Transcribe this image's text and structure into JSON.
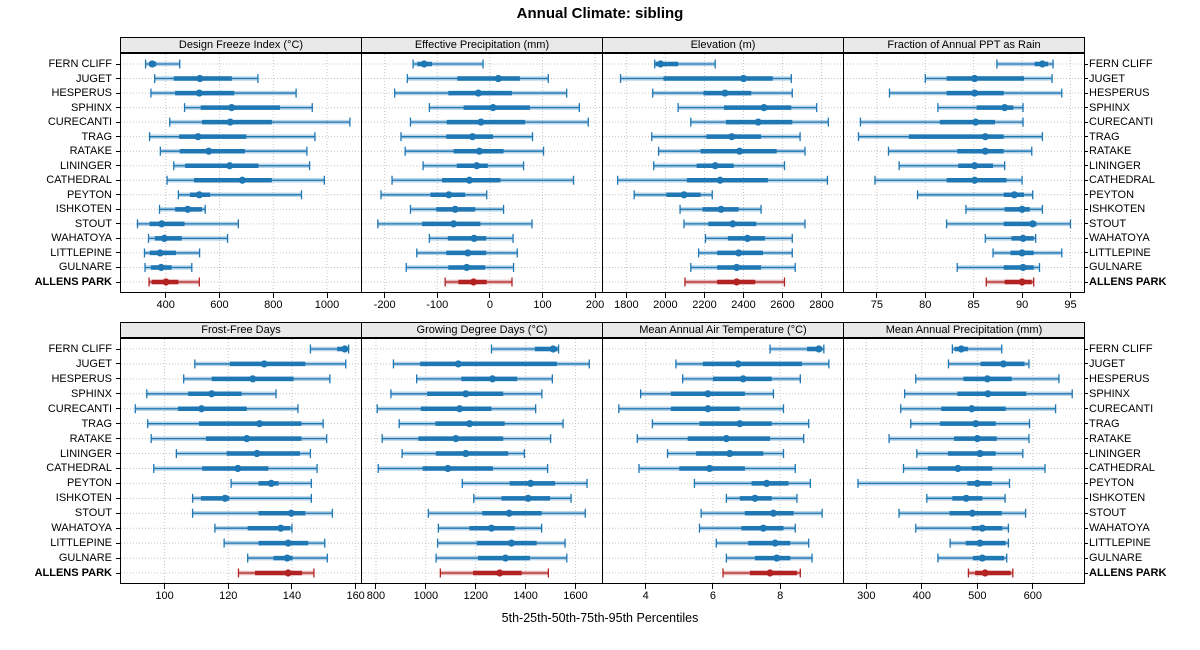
{
  "title": "Annual Climate: sibling",
  "caption": "5th-25th-50th-75th-95th Percentiles",
  "chart_data": {
    "type": "dotplot-percentile-trellis",
    "percentile_labels": [
      "5th",
      "25th",
      "50th",
      "75th",
      "95th"
    ],
    "stations": [
      "FERN CLIFF",
      "JUGET",
      "HESPERUS",
      "SPHINX",
      "CURECANTI",
      "TRAG",
      "RATAKE",
      "LININGER",
      "CATHEDRAL",
      "PEYTON",
      "ISHKOTEN",
      "STOUT",
      "WAHATOYA",
      "LITTLEPINE",
      "GULNARE",
      "ALLENS PARK"
    ],
    "highlight_station": "ALLENS PARK",
    "colors": {
      "series": "#1f77b4",
      "highlight": "#b22222",
      "grid": "#c4c4c4",
      "strip_bg": "#e9e9e9",
      "border": "#000000"
    },
    "layout": {
      "rows": 2,
      "cols": 4,
      "grid": "dotted",
      "labels_both_sides": true
    },
    "panels": [
      {
        "title": "Design Freeze Index (°C)",
        "ticks": [
          400,
          600,
          800,
          1000
        ],
        "xlim": [
          230,
          1130
        ],
        "values": [
          [
            325,
            338,
            350,
            365,
            452
          ],
          [
            359,
            430,
            527,
            646,
            743
          ],
          [
            345,
            435,
            525,
            655,
            885
          ],
          [
            470,
            530,
            645,
            825,
            945
          ],
          [
            415,
            535,
            640,
            795,
            1085
          ],
          [
            340,
            450,
            520,
            700,
            955
          ],
          [
            380,
            452,
            560,
            695,
            925
          ],
          [
            430,
            472,
            638,
            745,
            935
          ],
          [
            405,
            505,
            685,
            795,
            990
          ],
          [
            447,
            490,
            525,
            565,
            905
          ],
          [
            377,
            435,
            482,
            535,
            547
          ],
          [
            295,
            340,
            385,
            470,
            670
          ],
          [
            336,
            360,
            395,
            460,
            630
          ],
          [
            321,
            341,
            379,
            438,
            526
          ],
          [
            323,
            345,
            383,
            422,
            497
          ],
          [
            338,
            348,
            401,
            447,
            525
          ]
        ]
      },
      {
        "title": "Effective Precipitation (mm)",
        "ticks": [
          -200,
          -100,
          0,
          100,
          200
        ],
        "xlim": [
          -245,
          215
        ],
        "values": [
          [
            -146,
            -138,
            -125,
            -110,
            -13
          ],
          [
            -157,
            -62,
            16,
            57,
            111
          ],
          [
            -181,
            -79,
            -22,
            42,
            146
          ],
          [
            -115,
            -50,
            6,
            76,
            170
          ],
          [
            -151,
            -82,
            -17,
            67,
            187
          ],
          [
            -169,
            -83,
            -33,
            6,
            81
          ],
          [
            -161,
            -69,
            -20,
            26,
            102
          ],
          [
            -127,
            -63,
            -25,
            -4,
            64
          ],
          [
            -186,
            -91,
            -39,
            20,
            159
          ],
          [
            -207,
            -113,
            -78,
            -47,
            -6
          ],
          [
            -151,
            -102,
            -66,
            -28,
            26
          ],
          [
            -213,
            -129,
            -69,
            -18,
            80
          ],
          [
            -115,
            -80,
            -30,
            -7,
            44
          ],
          [
            -139,
            -83,
            -42,
            -7,
            52
          ],
          [
            -159,
            -79,
            -44,
            -9,
            45
          ],
          [
            -85,
            -60,
            -31,
            -6,
            42
          ]
        ]
      },
      {
        "title": "Elevation (m)",
        "ticks": [
          1800,
          2000,
          2200,
          2400,
          2600,
          2800
        ],
        "xlim": [
          1675,
          2915
        ],
        "values": [
          [
            1945,
            1950,
            1975,
            2065,
            2255
          ],
          [
            1770,
            1990,
            2400,
            2550,
            2645
          ],
          [
            1935,
            2195,
            2305,
            2440,
            2650
          ],
          [
            2065,
            2300,
            2505,
            2645,
            2775
          ],
          [
            2130,
            2310,
            2475,
            2650,
            2835
          ],
          [
            1930,
            2210,
            2340,
            2490,
            2690
          ],
          [
            1965,
            2180,
            2380,
            2570,
            2715
          ],
          [
            1940,
            2160,
            2255,
            2350,
            2610
          ],
          [
            1755,
            2110,
            2280,
            2525,
            2830
          ],
          [
            1840,
            2005,
            2095,
            2180,
            2240
          ],
          [
            2075,
            2190,
            2285,
            2375,
            2490
          ],
          [
            2095,
            2220,
            2345,
            2465,
            2715
          ],
          [
            2205,
            2320,
            2420,
            2510,
            2650
          ],
          [
            2170,
            2265,
            2375,
            2500,
            2650
          ],
          [
            2130,
            2265,
            2365,
            2490,
            2665
          ],
          [
            2100,
            2265,
            2365,
            2460,
            2610
          ]
        ]
      },
      {
        "title": "Fraction of Annual PPT as Rain",
        "ticks": [
          75,
          80,
          85,
          90,
          95
        ],
        "xlim": [
          71.5,
          96.5
        ],
        "values": [
          [
            87.4,
            91.3,
            92.1,
            92.7,
            93.2
          ],
          [
            80,
            82.2,
            85.1,
            90.2,
            93.1
          ],
          [
            76.3,
            82.2,
            85.1,
            88.1,
            94.1
          ],
          [
            81.3,
            85.3,
            88.2,
            89.1,
            90.1
          ],
          [
            73.3,
            81.5,
            85.2,
            87.2,
            90.1
          ],
          [
            73.1,
            78.3,
            86.2,
            88.1,
            92.1
          ],
          [
            76.2,
            83.3,
            86.2,
            88.1,
            91
          ],
          [
            77.3,
            83.4,
            85.1,
            87,
            88.2
          ],
          [
            74.8,
            82.2,
            85.1,
            88.4,
            90
          ],
          [
            79.2,
            88.1,
            89.2,
            90.2,
            91.1
          ],
          [
            84.2,
            88.2,
            90,
            90.8,
            92.1
          ],
          [
            82.2,
            88.1,
            91.1,
            91.5,
            95
          ],
          [
            86.2,
            88.9,
            90.1,
            91.2,
            91.4
          ],
          [
            87,
            88.8,
            90,
            91.2,
            94.1
          ],
          [
            83.3,
            88.1,
            90.1,
            91.2,
            91.8
          ],
          [
            86.3,
            88.2,
            90,
            91,
            91.2
          ]
        ]
      },
      {
        "title": "Frost-Free Days",
        "ticks": [
          100,
          120,
          140,
          160
        ],
        "xlim": [
          86,
          162
        ],
        "values": [
          [
            145.8,
            154.2,
            156.6,
            157.4,
            157.8
          ],
          [
            109.5,
            120.5,
            131.3,
            144.2,
            156.9
          ],
          [
            106,
            114.8,
            127.7,
            140.5,
            151.9
          ],
          [
            94.4,
            107.4,
            114.8,
            124.2,
            135
          ],
          [
            90.8,
            104.2,
            111.6,
            125.8,
            141.9
          ],
          [
            94.7,
            110.8,
            129.8,
            143,
            149.8
          ],
          [
            95.8,
            113,
            125.8,
            143,
            150.9
          ],
          [
            103.7,
            119.5,
            129,
            142.5,
            145.8
          ],
          [
            96.6,
            111.8,
            123,
            132.6,
            147.9
          ],
          [
            120.9,
            129.5,
            133.5,
            135.8,
            146.1
          ],
          [
            108.8,
            111.4,
            119,
            120.3,
            146.1
          ],
          [
            108.8,
            129.5,
            139.8,
            144.2,
            152.7
          ],
          [
            115.8,
            126.1,
            136.5,
            139.5,
            140
          ],
          [
            118.7,
            129.5,
            138.8,
            145.1,
            150.3
          ],
          [
            126.1,
            134.2,
            138.5,
            140.2,
            151.1
          ],
          [
            123.2,
            128.4,
            138.8,
            143.2,
            146.9
          ]
        ]
      },
      {
        "title": "Growing Degree Days (°C)",
        "ticks": [
          800,
          1000,
          1200,
          1400,
          1600
        ],
        "xlim": [
          740,
          1710
        ],
        "values": [
          [
            1263,
            1437,
            1510,
            1528,
            1532
          ],
          [
            870,
            977,
            1130,
            1525,
            1655
          ],
          [
            963,
            1142,
            1267,
            1366,
            1507
          ],
          [
            860,
            1005,
            1160,
            1310,
            1465
          ],
          [
            805,
            980,
            1135,
            1263,
            1440
          ],
          [
            893,
            1038,
            1175,
            1316,
            1550
          ],
          [
            825,
            970,
            1120,
            1310,
            1500
          ],
          [
            905,
            1040,
            1160,
            1330,
            1395
          ],
          [
            809,
            987,
            1088,
            1269,
            1488
          ],
          [
            1146,
            1336,
            1420,
            1518,
            1646
          ],
          [
            1192,
            1303,
            1410,
            1498,
            1582
          ],
          [
            1010,
            1226,
            1334,
            1464,
            1639
          ],
          [
            1050,
            1175,
            1263,
            1356,
            1464
          ],
          [
            1047,
            1204,
            1343,
            1444,
            1558
          ],
          [
            1041,
            1209,
            1319,
            1417,
            1565
          ],
          [
            1058,
            1189,
            1296,
            1384,
            1491
          ]
        ]
      },
      {
        "title": "Mean Annual Air Temperature (°C)",
        "ticks": [
          4,
          6,
          8
        ],
        "xlim": [
          2.7,
          9.9
        ],
        "values": [
          [
            7.7,
            8.8,
            9.15,
            9.25,
            9.3
          ],
          [
            4.9,
            5.7,
            6.75,
            8.65,
            9.45
          ],
          [
            5.1,
            6,
            6.9,
            7.75,
            8.6
          ],
          [
            3.85,
            4.75,
            5.85,
            6.95,
            7.8
          ],
          [
            3.2,
            4.75,
            5.85,
            6.8,
            8.1
          ],
          [
            4.2,
            5.6,
            6.8,
            7.75,
            8.85
          ],
          [
            3.75,
            5.25,
            6.4,
            7.7,
            8.7
          ],
          [
            4.65,
            5.5,
            6.5,
            7.5,
            8.1
          ],
          [
            3.8,
            5,
            5.9,
            6.95,
            8.45
          ],
          [
            5.45,
            7.15,
            7.6,
            8.25,
            8.9
          ],
          [
            6.4,
            6.8,
            7.25,
            7.75,
            8.5
          ],
          [
            5.65,
            6.95,
            7.8,
            8.4,
            9.25
          ],
          [
            5.6,
            6.85,
            7.5,
            8.1,
            8.45
          ],
          [
            6.1,
            7.05,
            7.85,
            8.3,
            8.85
          ],
          [
            6.4,
            7.25,
            7.9,
            8.3,
            8.95
          ],
          [
            6.3,
            7.1,
            7.7,
            8.5,
            8.6
          ]
        ]
      },
      {
        "title": "Mean Annual Precipitation (mm)",
        "ticks": [
          300,
          400,
          500,
          600
        ],
        "xlim": [
          258,
          694
        ],
        "values": [
          [
            455,
            459,
            471,
            483,
            544
          ],
          [
            448,
            506,
            547,
            585,
            593
          ],
          [
            389,
            475,
            518,
            562,
            647
          ],
          [
            369,
            464,
            519,
            588,
            671
          ],
          [
            362,
            435,
            490,
            551,
            641
          ],
          [
            380,
            433,
            497,
            533,
            594
          ],
          [
            341,
            458,
            500,
            535,
            593
          ],
          [
            391,
            447,
            505,
            533,
            582
          ],
          [
            367,
            411,
            465,
            527,
            622
          ],
          [
            285,
            482,
            500,
            526,
            558
          ],
          [
            409,
            455,
            480,
            509,
            550
          ],
          [
            359,
            450,
            491,
            544,
            587
          ],
          [
            389,
            490,
            509,
            545,
            556
          ],
          [
            451,
            479,
            505,
            551,
            556
          ],
          [
            429,
            492,
            509,
            548,
            553
          ],
          [
            484,
            496,
            514,
            560,
            564
          ]
        ]
      }
    ]
  }
}
